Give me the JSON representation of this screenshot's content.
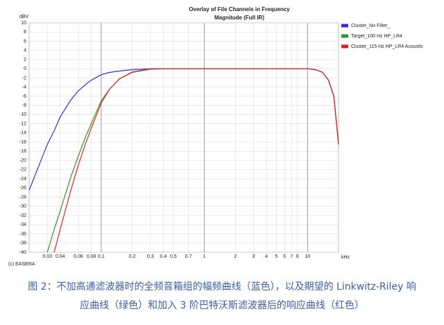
{
  "chart_data": {
    "type": "line",
    "title": "Overlay of File Channels in Frequency",
    "subtitle": "Magnitude (Full IR)",
    "y_unit": "dBV",
    "x_unit": "kHz",
    "annotation": "(c) EASERA",
    "x": [
      0.02,
      0.025,
      0.03,
      0.035,
      0.04,
      0.05,
      0.06,
      0.07,
      0.08,
      0.1,
      0.12,
      0.15,
      0.2,
      0.3,
      0.5,
      1,
      2,
      5,
      10,
      12,
      14,
      16,
      18,
      20
    ],
    "series": [
      {
        "name": "Cluster_No Filter_",
        "color": "#3030e0",
        "values": [
          -26.5,
          -21,
          -16.5,
          -13.5,
          -10.5,
          -7,
          -4.8,
          -3.5,
          -2.5,
          -1.3,
          -0.8,
          -0.5,
          -0.2,
          0,
          0,
          0,
          0,
          0,
          0,
          -0.2,
          -0.8,
          -2.5,
          -6,
          -16.5
        ]
      },
      {
        "name": "Target_100 Hz HP_LR4",
        "color": "#2a9a2a",
        "values": [
          null,
          null,
          -40,
          -35,
          -31,
          -24,
          -19,
          -15,
          -12,
          -7,
          -4.5,
          -2.2,
          -0.8,
          -0.1,
          0,
          0,
          0,
          0,
          0,
          -0.2,
          -0.8,
          -2.5,
          -6,
          -16.5
        ]
      },
      {
        "name": "Cluster_115 Hz HP_LR4 Acoustic",
        "color": "#e02020",
        "values": [
          null,
          null,
          null,
          -40,
          -35,
          -27,
          -21,
          -16.5,
          -13,
          -7.5,
          -4.5,
          -2.2,
          -0.7,
          0,
          0,
          0,
          0,
          0,
          0,
          -0.2,
          -0.8,
          -2.5,
          -6,
          -16.5
        ]
      }
    ],
    "xscale": "log",
    "xlim": [
      0.02,
      20
    ],
    "xticks": [
      0.03,
      0.04,
      0.06,
      0.08,
      0.1,
      0.2,
      0.3,
      0.4,
      0.5,
      0.7,
      1,
      2,
      3,
      4,
      5,
      6,
      7,
      8,
      10
    ],
    "ylim": [
      -40,
      10
    ],
    "yticks": [
      10,
      8,
      6,
      4,
      2,
      0,
      -2,
      -4,
      -6,
      -8,
      -10,
      -12,
      -14,
      -16,
      -18,
      -20,
      -22,
      -24,
      -26,
      -28,
      -30,
      -32,
      -34,
      -36,
      -38,
      -40
    ],
    "grid": true,
    "legend": "right"
  },
  "caption": [
    "图 2：不加高通滤波器时的全频音箱组的幅频曲线（蓝色），以及期望的 Linkwitz-Riley 响",
    "应曲线（绿色）和加入 3 阶巴特沃斯滤波器后的响应曲线（红色）"
  ]
}
